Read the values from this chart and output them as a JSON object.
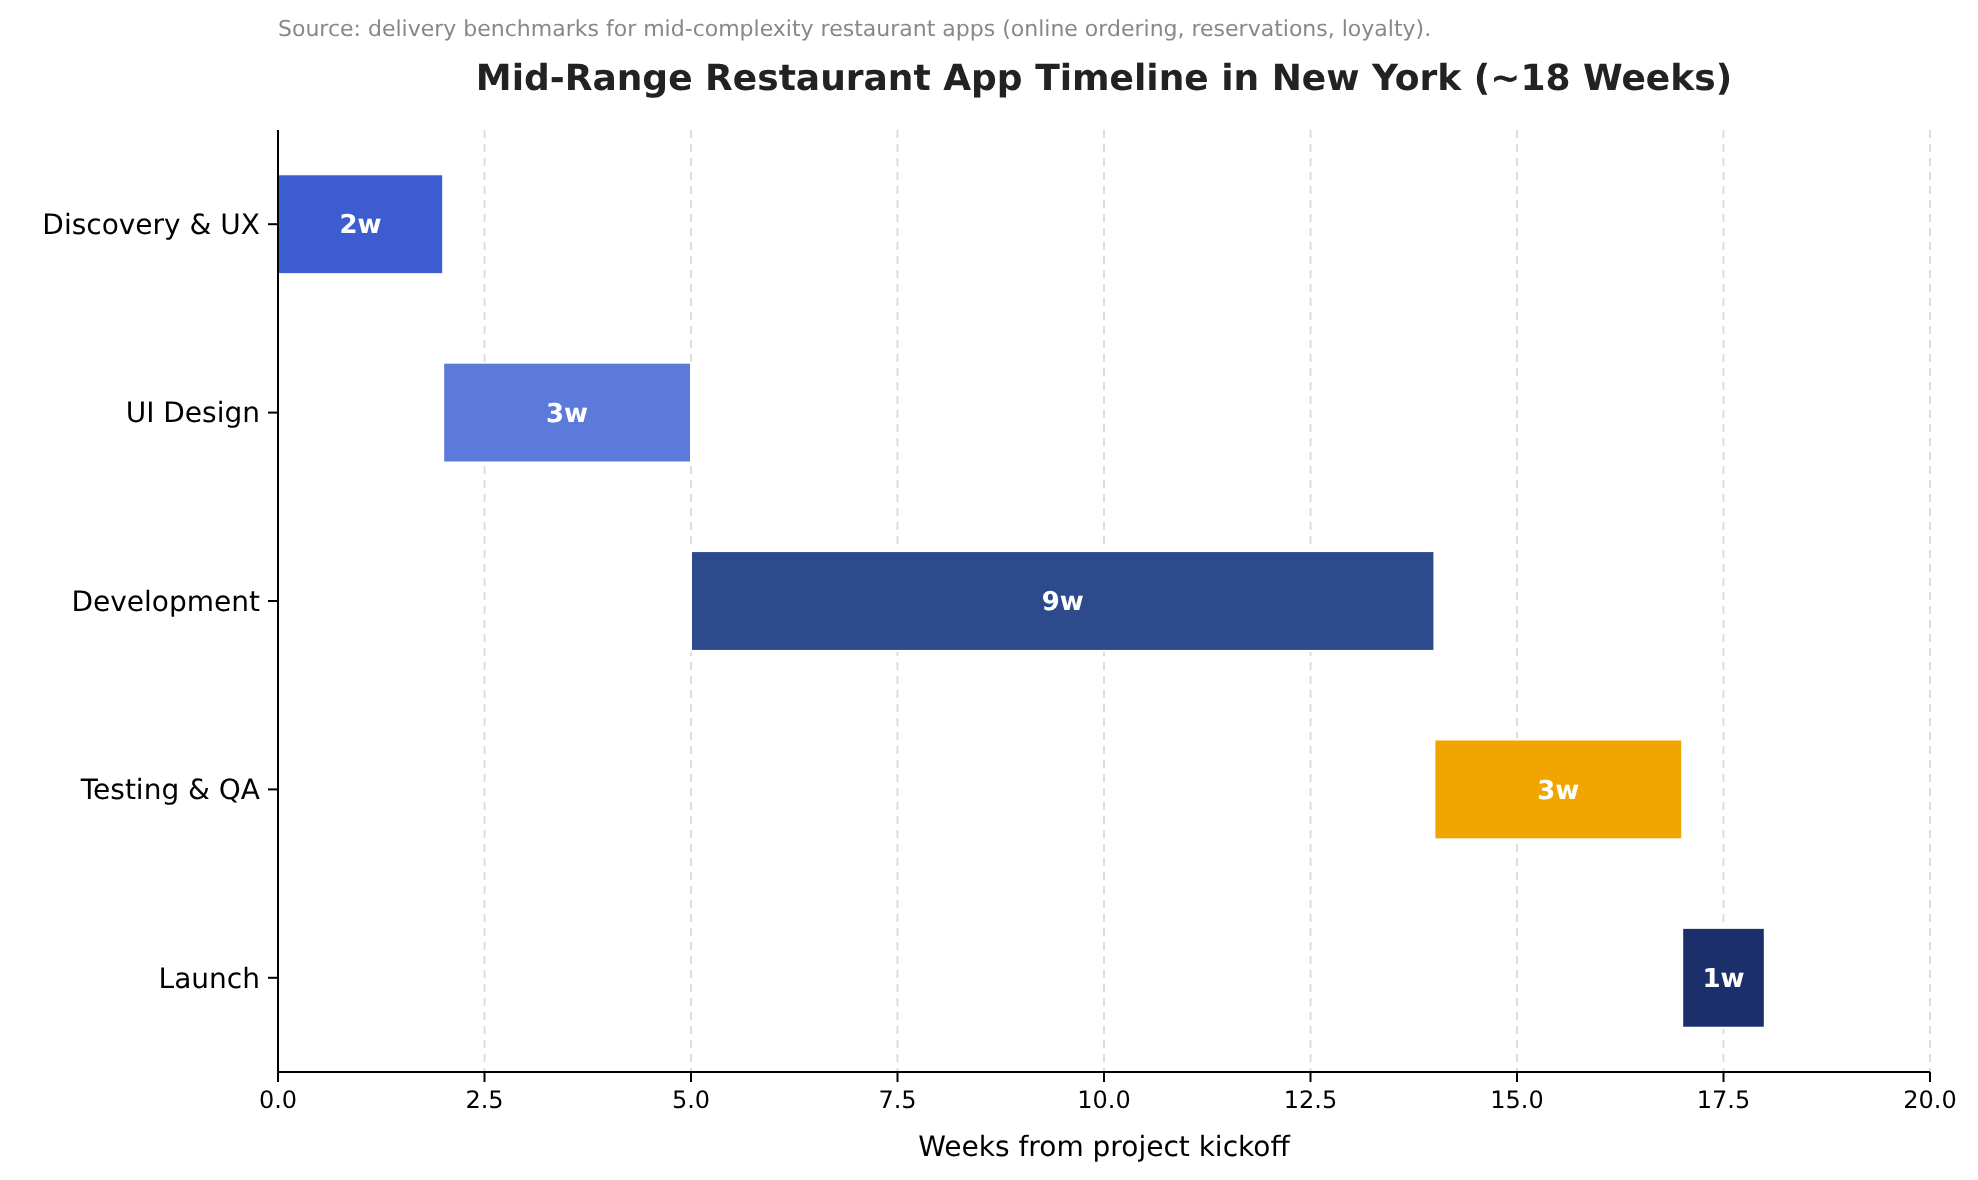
{
  "chart_data": {
    "type": "bar",
    "orientation": "horizontal",
    "title": "Mid-Range Restaurant App Timeline in New York (~18 Weeks)",
    "xlabel": "Weeks from project kickoff",
    "annotations": [
      "Source: delivery benchmarks for mid-complexity restaurant apps (online ordering, reservations, loyalty)."
    ],
    "categories": [
      "Discovery & UX",
      "UI Design",
      "Development",
      "Testing & QA",
      "Launch"
    ],
    "base": [
      0,
      2,
      5,
      14,
      17
    ],
    "values": [
      2,
      3,
      9,
      3,
      1
    ],
    "colors": [
      "#3c5ccf",
      "#5b7ad9",
      "#2c4a8c",
      "#f0a500",
      "#1b2f6b"
    ],
    "value_labels": [
      "2w",
      "3w",
      "9w",
      "3w",
      "1w"
    ],
    "xlim": [
      0,
      20
    ],
    "xticks": [
      {
        "value": 0,
        "label": "0.0"
      },
      {
        "value": 2.5,
        "label": "2.5"
      },
      {
        "value": 5,
        "label": "5.0"
      },
      {
        "value": 7.5,
        "label": "7.5"
      },
      {
        "value": 10,
        "label": "10.0"
      },
      {
        "value": 12.5,
        "label": "12.5"
      },
      {
        "value": 15,
        "label": "15.0"
      },
      {
        "value": 17.5,
        "label": "17.5"
      },
      {
        "value": 20,
        "label": "20.0"
      }
    ],
    "grid": "x"
  }
}
